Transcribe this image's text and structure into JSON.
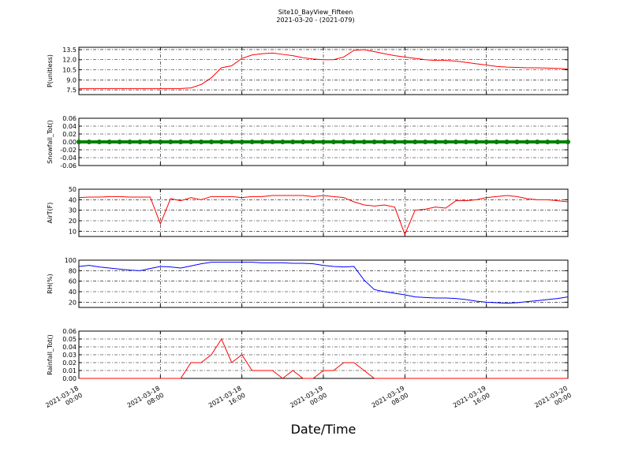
{
  "chart_data": [
    {
      "type": "line",
      "title": "Site10_BayView_Fifteen",
      "subtitle": "2021-03-20 - (2021-079)",
      "ylabel": "P(unitless)",
      "color": "#ff0000",
      "x": [
        "2021-03-18 00:00",
        "2021-03-18 01:00",
        "2021-03-18 02:00",
        "2021-03-18 03:00",
        "2021-03-18 04:00",
        "2021-03-18 05:00",
        "2021-03-18 06:00",
        "2021-03-18 07:00",
        "2021-03-18 08:00",
        "2021-03-18 09:00",
        "2021-03-18 10:00",
        "2021-03-18 11:00",
        "2021-03-18 12:00",
        "2021-03-18 13:00",
        "2021-03-18 14:00",
        "2021-03-18 15:00",
        "2021-03-18 16:00",
        "2021-03-18 17:00",
        "2021-03-18 18:00",
        "2021-03-18 19:00",
        "2021-03-18 20:00",
        "2021-03-18 21:00",
        "2021-03-18 22:00",
        "2021-03-18 23:00",
        "2021-03-19 00:00",
        "2021-03-19 01:00",
        "2021-03-19 02:00",
        "2021-03-19 03:00",
        "2021-03-19 04:00",
        "2021-03-19 05:00",
        "2021-03-19 06:00",
        "2021-03-19 07:00",
        "2021-03-19 08:00",
        "2021-03-19 09:00",
        "2021-03-19 10:00",
        "2021-03-19 11:00",
        "2021-03-19 12:00",
        "2021-03-19 13:00",
        "2021-03-19 14:00",
        "2021-03-19 15:00",
        "2021-03-19 16:00",
        "2021-03-19 17:00",
        "2021-03-19 18:00",
        "2021-03-19 19:00",
        "2021-03-19 20:00",
        "2021-03-19 21:00",
        "2021-03-19 22:00",
        "2021-03-19 23:00",
        "2021-03-20 00:00"
      ],
      "values": [
        7.7,
        7.7,
        7.7,
        7.7,
        7.7,
        7.7,
        7.7,
        7.7,
        7.7,
        7.7,
        7.7,
        7.8,
        8.3,
        9.3,
        10.8,
        11.1,
        12.2,
        12.7,
        12.9,
        13.0,
        12.8,
        12.6,
        12.3,
        12.1,
        12.0,
        12.0,
        12.4,
        13.4,
        13.5,
        13.2,
        12.9,
        12.6,
        12.4,
        12.2,
        12.0,
        11.9,
        11.9,
        11.8,
        11.6,
        11.4,
        11.2,
        11.0,
        10.9,
        10.85,
        10.8,
        10.8,
        10.75,
        10.7,
        10.6
      ],
      "xlim": [
        "2021-03-18 00:00",
        "2021-03-20 00:00"
      ],
      "xticks": [
        "2021-03-18 00:00",
        "2021-03-18 08:00",
        "2021-03-18 16:00",
        "2021-03-19 00:00",
        "2021-03-19 08:00",
        "2021-03-19 16:00",
        "2021-03-20 00:00"
      ],
      "ylim": [
        6.8,
        13.85
      ],
      "yticks": [
        7.5,
        {
          "value": 9,
          "label": "9.0"
        },
        10.5,
        {
          "value": 12,
          "label": "12.0"
        },
        13.5
      ],
      "grid": true
    },
    {
      "type": "line",
      "ylabel": "Snowfall_Tot()",
      "color": "#008000",
      "markers": true,
      "x": [
        "2021-03-18 00:00",
        "2021-03-18 01:00",
        "2021-03-18 02:00",
        "2021-03-18 03:00",
        "2021-03-18 04:00",
        "2021-03-18 05:00",
        "2021-03-18 06:00",
        "2021-03-18 07:00",
        "2021-03-18 08:00",
        "2021-03-18 09:00",
        "2021-03-18 10:00",
        "2021-03-18 11:00",
        "2021-03-18 12:00",
        "2021-03-18 13:00",
        "2021-03-18 14:00",
        "2021-03-18 15:00",
        "2021-03-18 16:00",
        "2021-03-18 17:00",
        "2021-03-18 18:00",
        "2021-03-18 19:00",
        "2021-03-18 20:00",
        "2021-03-18 21:00",
        "2021-03-18 22:00",
        "2021-03-18 23:00",
        "2021-03-19 00:00",
        "2021-03-19 01:00",
        "2021-03-19 02:00",
        "2021-03-19 03:00",
        "2021-03-19 04:00",
        "2021-03-19 05:00",
        "2021-03-19 06:00",
        "2021-03-19 07:00",
        "2021-03-19 08:00",
        "2021-03-19 09:00",
        "2021-03-19 10:00",
        "2021-03-19 11:00",
        "2021-03-19 12:00",
        "2021-03-19 13:00",
        "2021-03-19 14:00",
        "2021-03-19 15:00",
        "2021-03-19 16:00",
        "2021-03-19 17:00",
        "2021-03-19 18:00",
        "2021-03-19 19:00",
        "2021-03-19 20:00",
        "2021-03-19 21:00",
        "2021-03-19 22:00",
        "2021-03-19 23:00",
        "2021-03-20 00:00"
      ],
      "values": [
        0,
        0,
        0,
        0,
        0,
        0,
        0,
        0,
        0,
        0,
        0,
        0,
        0,
        0,
        0,
        0,
        0,
        0,
        0,
        0,
        0,
        0,
        0,
        0,
        0,
        0,
        0,
        0,
        0,
        0,
        0,
        0,
        0,
        0,
        0,
        0,
        0,
        0,
        0,
        0,
        0,
        0,
        0,
        0,
        0,
        0,
        0,
        0,
        0
      ],
      "xlim": [
        "2021-03-18 00:00",
        "2021-03-20 00:00"
      ],
      "xticks": [
        "2021-03-18 00:00",
        "2021-03-18 08:00",
        "2021-03-18 16:00",
        "2021-03-19 00:00",
        "2021-03-19 08:00",
        "2021-03-19 16:00",
        "2021-03-20 00:00"
      ],
      "ylim": [
        -0.06,
        0.06
      ],
      "yticks": [
        -0.06,
        -0.04,
        -0.02,
        {
          "value": 0,
          "label": "0.00"
        },
        0.02,
        0.04,
        0.06
      ],
      "grid": true
    },
    {
      "type": "line",
      "ylabel": "AirT(F)",
      "color": "#ff0000",
      "x": [
        "2021-03-18 00:00",
        "2021-03-18 01:00",
        "2021-03-18 02:00",
        "2021-03-18 03:00",
        "2021-03-18 04:00",
        "2021-03-18 05:00",
        "2021-03-18 06:00",
        "2021-03-18 07:00",
        "2021-03-18 08:00",
        "2021-03-18 09:00",
        "2021-03-18 10:00",
        "2021-03-18 11:00",
        "2021-03-18 12:00",
        "2021-03-18 13:00",
        "2021-03-18 14:00",
        "2021-03-18 15:00",
        "2021-03-18 16:00",
        "2021-03-18 17:00",
        "2021-03-18 18:00",
        "2021-03-18 19:00",
        "2021-03-18 20:00",
        "2021-03-18 21:00",
        "2021-03-18 22:00",
        "2021-03-18 23:00",
        "2021-03-19 00:00",
        "2021-03-19 01:00",
        "2021-03-19 02:00",
        "2021-03-19 03:00",
        "2021-03-19 04:00",
        "2021-03-19 05:00",
        "2021-03-19 06:00",
        "2021-03-19 07:00",
        "2021-03-19 08:00",
        "2021-03-19 09:00",
        "2021-03-19 10:00",
        "2021-03-19 11:00",
        "2021-03-19 12:00",
        "2021-03-19 13:00",
        "2021-03-19 14:00",
        "2021-03-19 15:00",
        "2021-03-19 16:00",
        "2021-03-19 17:00",
        "2021-03-19 18:00",
        "2021-03-19 19:00",
        "2021-03-19 20:00",
        "2021-03-19 21:00",
        "2021-03-19 22:00",
        "2021-03-19 23:00",
        "2021-03-20 00:00"
      ],
      "values": [
        42,
        42.5,
        42.5,
        43,
        43,
        42.5,
        42.5,
        42.5,
        17,
        41,
        39,
        42,
        40,
        43,
        43,
        43,
        42,
        43,
        43,
        44,
        44,
        44,
        44,
        43,
        44,
        43,
        42,
        38,
        35,
        34,
        35,
        33,
        7,
        30,
        31,
        33,
        32,
        39,
        39,
        40,
        42,
        43,
        44,
        43,
        41,
        40,
        40,
        39,
        38
      ],
      "xlim": [
        "2021-03-18 00:00",
        "2021-03-20 00:00"
      ],
      "xticks": [
        "2021-03-18 00:00",
        "2021-03-18 08:00",
        "2021-03-18 16:00",
        "2021-03-19 00:00",
        "2021-03-19 08:00",
        "2021-03-19 16:00",
        "2021-03-20 00:00"
      ],
      "ylim": [
        5,
        50
      ],
      "yticks": [
        10,
        20,
        30,
        40,
        50
      ],
      "grid": true
    },
    {
      "type": "line",
      "ylabel": "RH(%)",
      "color": "#0000ff",
      "x": [
        "2021-03-18 00:00",
        "2021-03-18 01:00",
        "2021-03-18 02:00",
        "2021-03-18 03:00",
        "2021-03-18 04:00",
        "2021-03-18 05:00",
        "2021-03-18 06:00",
        "2021-03-18 07:00",
        "2021-03-18 08:00",
        "2021-03-18 09:00",
        "2021-03-18 10:00",
        "2021-03-18 11:00",
        "2021-03-18 12:00",
        "2021-03-18 13:00",
        "2021-03-18 14:00",
        "2021-03-18 15:00",
        "2021-03-18 16:00",
        "2021-03-18 17:00",
        "2021-03-18 18:00",
        "2021-03-18 19:00",
        "2021-03-18 20:00",
        "2021-03-18 21:00",
        "2021-03-18 22:00",
        "2021-03-18 23:00",
        "2021-03-19 00:00",
        "2021-03-19 01:00",
        "2021-03-19 02:00",
        "2021-03-19 03:00",
        "2021-03-19 04:00",
        "2021-03-19 05:00",
        "2021-03-19 06:00",
        "2021-03-19 07:00",
        "2021-03-19 08:00",
        "2021-03-19 09:00",
        "2021-03-19 10:00",
        "2021-03-19 11:00",
        "2021-03-19 12:00",
        "2021-03-19 13:00",
        "2021-03-19 14:00",
        "2021-03-19 15:00",
        "2021-03-19 16:00",
        "2021-03-19 17:00",
        "2021-03-19 18:00",
        "2021-03-19 19:00",
        "2021-03-19 20:00",
        "2021-03-19 21:00",
        "2021-03-19 22:00",
        "2021-03-19 23:00",
        "2021-03-20 00:00"
      ],
      "values": [
        88,
        90,
        87,
        85,
        83,
        81,
        80,
        84,
        88,
        87,
        85,
        89,
        93,
        96,
        96,
        96,
        96,
        96,
        95,
        95,
        95,
        94,
        94,
        93,
        90,
        88,
        87,
        88,
        62,
        44,
        40,
        37,
        34,
        30,
        29,
        28,
        28,
        27,
        25,
        22,
        20,
        19,
        18,
        19,
        21,
        23,
        25,
        27,
        30
      ],
      "xlim": [
        "2021-03-18 00:00",
        "2021-03-20 00:00"
      ],
      "xticks": [
        "2021-03-18 00:00",
        "2021-03-18 08:00",
        "2021-03-18 16:00",
        "2021-03-19 00:00",
        "2021-03-19 08:00",
        "2021-03-19 16:00",
        "2021-03-20 00:00"
      ],
      "ylim": [
        10,
        100
      ],
      "yticks": [
        20,
        40,
        60,
        80,
        100
      ],
      "grid": true
    },
    {
      "type": "line",
      "ylabel": "Rainfall_Tot()",
      "xlabel": "Date/Time",
      "color": "#ff0000",
      "x": [
        "2021-03-18 00:00",
        "2021-03-18 01:00",
        "2021-03-18 02:00",
        "2021-03-18 03:00",
        "2021-03-18 04:00",
        "2021-03-18 05:00",
        "2021-03-18 06:00",
        "2021-03-18 07:00",
        "2021-03-18 08:00",
        "2021-03-18 09:00",
        "2021-03-18 10:00",
        "2021-03-18 11:00",
        "2021-03-18 12:00",
        "2021-03-18 13:00",
        "2021-03-18 14:00",
        "2021-03-18 15:00",
        "2021-03-18 16:00",
        "2021-03-18 17:00",
        "2021-03-18 18:00",
        "2021-03-18 19:00",
        "2021-03-18 20:00",
        "2021-03-18 21:00",
        "2021-03-18 22:00",
        "2021-03-18 23:00",
        "2021-03-19 00:00",
        "2021-03-19 01:00",
        "2021-03-19 02:00",
        "2021-03-19 03:00",
        "2021-03-19 04:00",
        "2021-03-19 05:00",
        "2021-03-19 06:00",
        "2021-03-19 07:00",
        "2021-03-19 08:00",
        "2021-03-19 09:00",
        "2021-03-19 10:00",
        "2021-03-19 11:00",
        "2021-03-19 12:00",
        "2021-03-19 13:00",
        "2021-03-19 14:00",
        "2021-03-19 15:00",
        "2021-03-19 16:00",
        "2021-03-19 17:00",
        "2021-03-19 18:00",
        "2021-03-19 19:00",
        "2021-03-19 20:00",
        "2021-03-19 21:00",
        "2021-03-19 22:00",
        "2021-03-19 23:00",
        "2021-03-20 00:00"
      ],
      "values": [
        0,
        0,
        0,
        0,
        0,
        0,
        0,
        0,
        0,
        0,
        0,
        0.02,
        0.02,
        0.03,
        0.05,
        0.02,
        0.03,
        0.01,
        0.01,
        0.01,
        0,
        0.01,
        0,
        0,
        0.01,
        0.01,
        0.02,
        0.02,
        0.01,
        0,
        0,
        0,
        0,
        0,
        0,
        0,
        0,
        0,
        0,
        0,
        0,
        0,
        0,
        0,
        0,
        0,
        0,
        0,
        0
      ],
      "xlim": [
        "2021-03-18 00:00",
        "2021-03-20 00:00"
      ],
      "xticks": [
        {
          "value": "2021-03-18 00:00",
          "label": "2021-03-18\n00:00"
        },
        {
          "value": "2021-03-18 08:00",
          "label": "2021-03-18\n08:00"
        },
        {
          "value": "2021-03-18 16:00",
          "label": "2021-03-18\n16:00"
        },
        {
          "value": "2021-03-19 00:00",
          "label": "2021-03-19\n00:00"
        },
        {
          "value": "2021-03-19 08:00",
          "label": "2021-03-19\n08:00"
        },
        {
          "value": "2021-03-19 16:00",
          "label": "2021-03-19\n16:00"
        },
        {
          "value": "2021-03-20 00:00",
          "label": "2021-03-20\n00:00"
        }
      ],
      "ylim": [
        0,
        0.06
      ],
      "yticks": [
        {
          "value": 0,
          "label": "0.00"
        },
        0.01,
        0.02,
        0.03,
        0.04,
        0.05,
        0.06
      ],
      "grid": true
    }
  ]
}
